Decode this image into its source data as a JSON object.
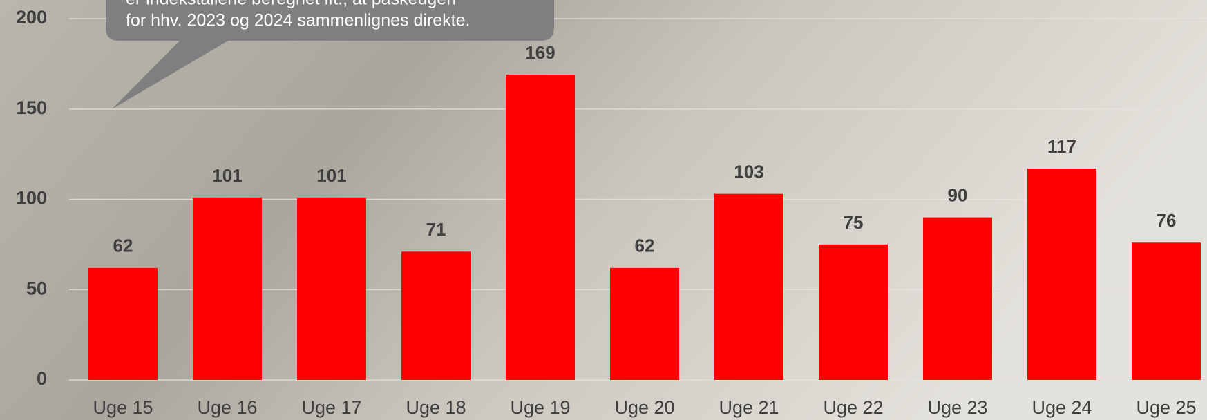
{
  "chart_data": {
    "type": "bar",
    "callout": [
      "er indekstallene beregnet ift., at påskeugen",
      "for hhv. 2023 og 2024 sammenlignes direkte."
    ],
    "categories": [
      "Uge 15",
      "Uge 16",
      "Uge 17",
      "Uge 18",
      "Uge 19",
      "Uge 20",
      "Uge 21",
      "Uge 22",
      "Uge 23",
      "Uge 24",
      "Uge 25"
    ],
    "values": [
      62,
      101,
      101,
      71,
      169,
      62,
      103,
      75,
      90,
      117,
      76
    ],
    "color": "#ff0000",
    "ylim": [
      0,
      200
    ],
    "yticks": [
      0,
      50,
      100,
      150,
      200
    ],
    "grid": true
  }
}
